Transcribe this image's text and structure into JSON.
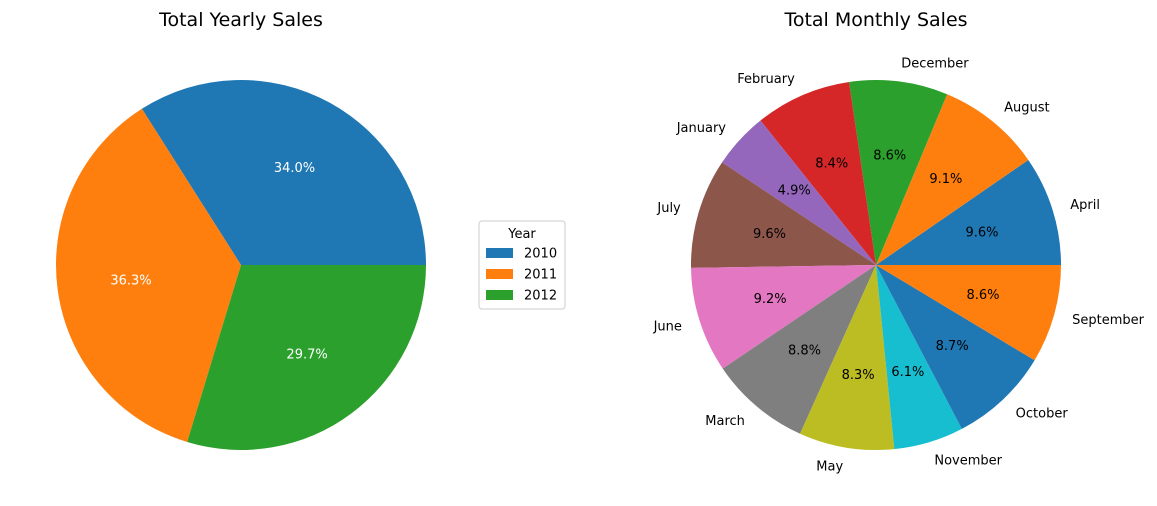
{
  "chart_data": [
    {
      "type": "pie",
      "title": "Total Yearly Sales",
      "categories": [
        "2010",
        "2011",
        "2012"
      ],
      "values": [
        34.0,
        36.3,
        29.7
      ],
      "value_labels": [
        "34.0%",
        "36.3%",
        "29.7%"
      ],
      "colors": [
        "#1f77b4",
        "#ff7f0e",
        "#2ca02c"
      ],
      "label_color": "#ffffff",
      "legend": {
        "title": "Year",
        "entries": [
          "2010",
          "2011",
          "2012"
        ],
        "placement": "right"
      }
    },
    {
      "type": "pie",
      "title": "Total Monthly Sales",
      "categories": [
        "April",
        "August",
        "December",
        "February",
        "January",
        "July",
        "June",
        "March",
        "May",
        "November",
        "October",
        "September"
      ],
      "values": [
        9.6,
        9.1,
        8.6,
        8.4,
        4.9,
        9.6,
        9.2,
        8.8,
        8.3,
        6.1,
        8.7,
        8.6
      ],
      "value_labels": [
        "9.6%",
        "9.1%",
        "8.6%",
        "8.4%",
        "4.9%",
        "9.6%",
        "9.2%",
        "8.8%",
        "8.3%",
        "6.1%",
        "8.7%",
        "8.6%"
      ],
      "colors": [
        "#1f77b4",
        "#ff7f0e",
        "#2ca02c",
        "#d62728",
        "#9467bd",
        "#8c564b",
        "#e377c2",
        "#7f7f7f",
        "#bcbd22",
        "#17becf",
        "#1f77b4",
        "#ff7f0e"
      ],
      "label_color": "#000000"
    }
  ]
}
